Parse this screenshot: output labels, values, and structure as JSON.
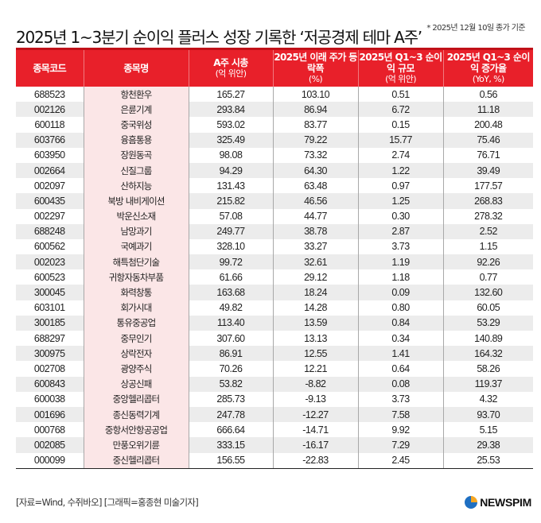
{
  "header": {
    "title": "2025년 1~3분기 순이익 플러스 성장 기록한 ‘저공경제 테마 A주’",
    "note": "* 2025년 12월 10일 종가 기준"
  },
  "table": {
    "columns": [
      {
        "label": "종목코드",
        "sub": ""
      },
      {
        "label": "종목명",
        "sub": ""
      },
      {
        "label": "A주 시총",
        "sub": "(억 위안)"
      },
      {
        "label": "2025년 이래 주가 등락폭",
        "sub": "(%)"
      },
      {
        "label": "2025년 Q1~3 순이익 규모",
        "sub": "(억 위안)"
      },
      {
        "label": "2025년 Q1~3 순이익 증가율",
        "sub": "(YoY, %)"
      }
    ],
    "rows": [
      [
        "688523",
        "항천환우",
        "165.27",
        "103.10",
        "0.51",
        "0.56"
      ],
      [
        "002126",
        "은륜기계",
        "293.84",
        "86.94",
        "6.72",
        "11.18"
      ],
      [
        "600118",
        "중국위성",
        "593.02",
        "83.77",
        "0.15",
        "200.48"
      ],
      [
        "603766",
        "융흠통용",
        "325.49",
        "79.22",
        "15.77",
        "75.46"
      ],
      [
        "603950",
        "장원동곡",
        "98.08",
        "73.32",
        "2.74",
        "76.71"
      ],
      [
        "002664",
        "신질그룹",
        "94.29",
        "64.30",
        "1.22",
        "39.49"
      ],
      [
        "002097",
        "산하지능",
        "131.43",
        "63.48",
        "0.97",
        "177.57"
      ],
      [
        "600435",
        "북방 내비게이션",
        "215.82",
        "46.56",
        "1.25",
        "268.83"
      ],
      [
        "002297",
        "박운신소재",
        "57.08",
        "44.77",
        "0.30",
        "278.32"
      ],
      [
        "688248",
        "남망과기",
        "249.77",
        "38.78",
        "2.87",
        "2.52"
      ],
      [
        "600562",
        "국예과기",
        "328.10",
        "33.27",
        "3.73",
        "1.15"
      ],
      [
        "002023",
        "해특첨단기술",
        "99.72",
        "32.61",
        "1.19",
        "92.26"
      ],
      [
        "600523",
        "귀항자동차부품",
        "61.66",
        "29.12",
        "1.18",
        "0.77"
      ],
      [
        "300045",
        "화력창통",
        "163.68",
        "18.24",
        "0.09",
        "132.60"
      ],
      [
        "603101",
        "회가시대",
        "49.82",
        "14.28",
        "0.80",
        "60.05"
      ],
      [
        "300185",
        "통유중공업",
        "113.40",
        "13.59",
        "0.84",
        "53.29"
      ],
      [
        "688297",
        "중무인기",
        "307.60",
        "13.13",
        "0.34",
        "140.89"
      ],
      [
        "300975",
        "상락전자",
        "86.91",
        "12.55",
        "1.41",
        "164.32"
      ],
      [
        "002708",
        "광양주식",
        "70.26",
        "12.21",
        "0.64",
        "58.26"
      ],
      [
        "600843",
        "상공신패",
        "53.82",
        "-8.82",
        "0.08",
        "119.37"
      ],
      [
        "600038",
        "중앙헬리콥터",
        "285.73",
        "-9.13",
        "3.73",
        "4.32"
      ],
      [
        "001696",
        "종신동력기계",
        "247.78",
        "-12.27",
        "7.58",
        "93.70"
      ],
      [
        "000768",
        "중항서안항공공업",
        "666.64",
        "-14.71",
        "9.92",
        "5.15"
      ],
      [
        "002085",
        "만풍오위기륜",
        "333.15",
        "-16.17",
        "7.29",
        "29.38"
      ],
      [
        "000099",
        "중신헬리콥터",
        "156.55",
        "-22.83",
        "2.45",
        "25.53"
      ]
    ]
  },
  "footer": {
    "source": "[자료=Wind, 수쥐바오] [그래픽=홍종현 미술기자]",
    "logo_text": "NEWSPIM",
    "logo_icon": "newspim-globe-icon"
  },
  "colors": {
    "header_red": "#e8202a",
    "name_column_pink": "#fbe6e7",
    "alt_row_gray": "#ececec"
  },
  "chart_data": {
    "type": "table",
    "title": "2025년 1~3분기 순이익 플러스 성장 기록한 ‘저공경제 테마 A주’",
    "subtitle": "* 2025년 12월 10일 종가 기준",
    "columns": [
      "종목코드",
      "종목명",
      "A주 시총 (억 위안)",
      "2025년 이래 주가 등락폭 (%)",
      "2025년 Q1~3 순이익 규모 (억 위안)",
      "2025년 Q1~3 순이익 증가율 (YoY, %)"
    ],
    "rows": [
      [
        "688523",
        "항천환우",
        165.27,
        103.1,
        0.51,
        0.56
      ],
      [
        "002126",
        "은륜기계",
        293.84,
        86.94,
        6.72,
        11.18
      ],
      [
        "600118",
        "중국위성",
        593.02,
        83.77,
        0.15,
        200.48
      ],
      [
        "603766",
        "융흠통용",
        325.49,
        79.22,
        15.77,
        75.46
      ],
      [
        "603950",
        "장원동곡",
        98.08,
        73.32,
        2.74,
        76.71
      ],
      [
        "002664",
        "신질그룹",
        94.29,
        64.3,
        1.22,
        39.49
      ],
      [
        "002097",
        "산하지능",
        131.43,
        63.48,
        0.97,
        177.57
      ],
      [
        "600435",
        "북방 내비게이션",
        215.82,
        46.56,
        1.25,
        268.83
      ],
      [
        "002297",
        "박운신소재",
        57.08,
        44.77,
        0.3,
        278.32
      ],
      [
        "688248",
        "남망과기",
        249.77,
        38.78,
        2.87,
        2.52
      ],
      [
        "600562",
        "국예과기",
        328.1,
        33.27,
        3.73,
        1.15
      ],
      [
        "002023",
        "해특첨단기술",
        99.72,
        32.61,
        1.19,
        92.26
      ],
      [
        "600523",
        "귀항자동차부품",
        61.66,
        29.12,
        1.18,
        0.77
      ],
      [
        "300045",
        "화력창통",
        163.68,
        18.24,
        0.09,
        132.6
      ],
      [
        "603101",
        "회가시대",
        49.82,
        14.28,
        0.8,
        60.05
      ],
      [
        "300185",
        "통유중공업",
        113.4,
        13.59,
        0.84,
        53.29
      ],
      [
        "688297",
        "중무인기",
        307.6,
        13.13,
        0.34,
        140.89
      ],
      [
        "300975",
        "상락전자",
        86.91,
        12.55,
        1.41,
        164.32
      ],
      [
        "002708",
        "광양주식",
        70.26,
        12.21,
        0.64,
        58.26
      ],
      [
        "600843",
        "상공신패",
        53.82,
        -8.82,
        0.08,
        119.37
      ],
      [
        "600038",
        "중앙헬리콥터",
        285.73,
        -9.13,
        3.73,
        4.32
      ],
      [
        "001696",
        "종신동력기계",
        247.78,
        -12.27,
        7.58,
        93.7
      ],
      [
        "000768",
        "중항서안항공공업",
        666.64,
        -14.71,
        9.92,
        5.15
      ],
      [
        "002085",
        "만풍오위기륜",
        333.15,
        -16.17,
        7.29,
        29.38
      ],
      [
        "000099",
        "중신헬리콥터",
        156.55,
        -22.83,
        2.45,
        25.53
      ]
    ],
    "source": "[자료=Wind, 수쥐바오] [그래픽=홍종현 미술기자]"
  }
}
